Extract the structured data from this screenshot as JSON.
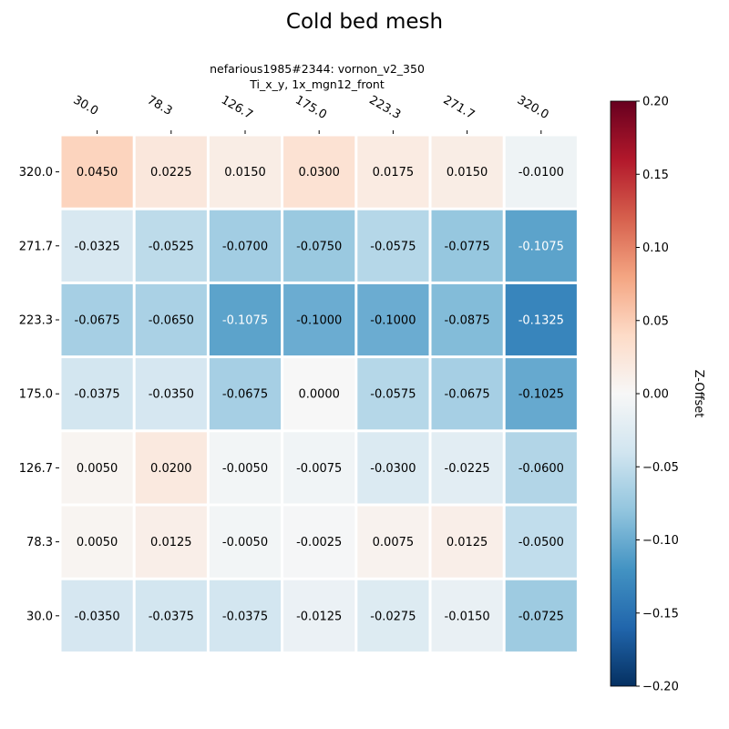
{
  "chart_data": {
    "type": "heatmap",
    "title": "Cold bed mesh",
    "subtitle_lines": [
      "nefarious1985#2344: vornon_v2_350",
      "Ti_x_y, 1x_mgn12_front"
    ],
    "x_ticks": [
      "30.0",
      "78.3",
      "126.7",
      "175.0",
      "223.3",
      "271.7",
      "320.0"
    ],
    "y_ticks": [
      "320.0",
      "271.7",
      "223.3",
      "175.0",
      "126.7",
      "78.3",
      "30.0"
    ],
    "values": [
      [
        0.045,
        0.0225,
        0.015,
        0.03,
        0.0175,
        0.015,
        -0.01
      ],
      [
        -0.0325,
        -0.0525,
        -0.07,
        -0.075,
        -0.0575,
        -0.0775,
        -0.1075
      ],
      [
        -0.0675,
        -0.065,
        -0.1075,
        -0.1,
        -0.1,
        -0.0875,
        -0.1325
      ],
      [
        -0.0375,
        -0.035,
        -0.0675,
        0.0,
        -0.0575,
        -0.0675,
        -0.1025
      ],
      [
        0.005,
        0.02,
        -0.005,
        -0.0075,
        -0.03,
        -0.0225,
        -0.06
      ],
      [
        0.005,
        0.0125,
        -0.005,
        -0.0025,
        0.0075,
        0.0125,
        -0.05
      ],
      [
        -0.035,
        -0.0375,
        -0.0375,
        -0.0125,
        -0.0275,
        -0.015,
        -0.0725
      ]
    ],
    "value_labels": [
      [
        "0.0450",
        "0.0225",
        "0.0150",
        "0.0300",
        "0.0175",
        "0.0150",
        "-0.0100"
      ],
      [
        "-0.0325",
        "-0.0525",
        "-0.0700",
        "-0.0750",
        "-0.0575",
        "-0.0775",
        "-0.1075"
      ],
      [
        "-0.0675",
        "-0.0650",
        "-0.1075",
        "-0.1000",
        "-0.1000",
        "-0.0875",
        "-0.1325"
      ],
      [
        "-0.0375",
        "-0.0350",
        "-0.0675",
        "0.0000",
        "-0.0575",
        "-0.0675",
        "-0.1025"
      ],
      [
        "0.0050",
        "0.0200",
        "-0.0050",
        "-0.0075",
        "-0.0300",
        "-0.0225",
        "-0.0600"
      ],
      [
        "0.0050",
        "0.0125",
        "-0.0050",
        "-0.0025",
        "0.0075",
        "0.0125",
        "-0.0500"
      ],
      [
        "-0.0350",
        "-0.0375",
        "-0.0375",
        "-0.0125",
        "-0.0275",
        "-0.0150",
        "-0.0725"
      ]
    ],
    "colorbar": {
      "label": "Z-Offset",
      "min": -0.2,
      "max": 0.2,
      "colormap": "RdBu_r",
      "ticks": [
        -0.2,
        -0.15,
        -0.1,
        -0.05,
        0.0,
        0.05,
        0.1,
        0.15,
        0.2
      ],
      "tick_labels": [
        "−0.20",
        "−0.15",
        "−0.10",
        "−0.05",
        "0.00",
        "0.05",
        "0.10",
        "0.15",
        "0.20"
      ]
    }
  }
}
